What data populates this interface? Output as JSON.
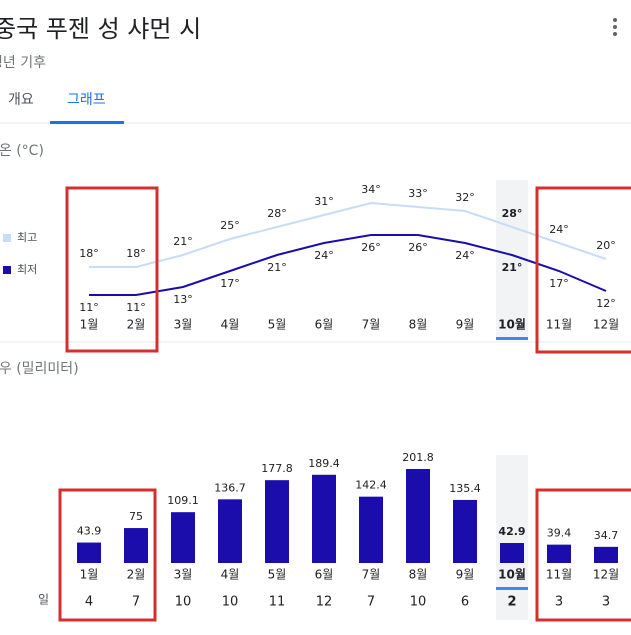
{
  "header": {
    "title": "중국 푸젠 성 샤먼 시",
    "subtitle": "평년 기후"
  },
  "tabs": [
    "개요",
    "그래프"
  ],
  "chart_data": [
    {
      "type": "line",
      "title": "기온 (°C)",
      "categories": [
        "1월",
        "2월",
        "3월",
        "4월",
        "5월",
        "6월",
        "7월",
        "8월",
        "9월",
        "10월",
        "11월",
        "12월"
      ],
      "highlight_index": 9,
      "series": [
        {
          "name": "최고",
          "color": "#c9dcf7",
          "values": [
            18,
            18,
            21,
            25,
            28,
            31,
            34,
            33,
            32,
            28,
            24,
            20
          ],
          "value_labels": [
            "18°",
            "18°",
            "21°",
            "25°",
            "28°",
            "31°",
            "34°",
            "33°",
            "32°",
            "28°",
            "24°",
            "20°"
          ]
        },
        {
          "name": "최저",
          "color": "#1a0dab",
          "values": [
            11,
            11,
            13,
            17,
            21,
            24,
            26,
            26,
            24,
            21,
            17,
            12
          ],
          "value_labels": [
            "11°",
            "11°",
            "13°",
            "17°",
            "21°",
            "24°",
            "26°",
            "26°",
            "24°",
            "21°",
            "17°",
            "12°"
          ]
        }
      ]
    },
    {
      "type": "bar",
      "title": "강우 (밀리미터)",
      "categories": [
        "1월",
        "2월",
        "3월",
        "4월",
        "5월",
        "6월",
        "7월",
        "8월",
        "9월",
        "10월",
        "11월",
        "12월"
      ],
      "highlight_index": 9,
      "color": "#1a0dab",
      "values": [
        43.9,
        75,
        109.1,
        136.7,
        177.8,
        189.4,
        142.4,
        201.8,
        135.4,
        42.9,
        39.4,
        34.7
      ],
      "day_label": "일",
      "day_values": [
        4,
        7,
        10,
        10,
        11,
        12,
        7,
        10,
        6,
        2,
        3,
        3
      ]
    }
  ]
}
